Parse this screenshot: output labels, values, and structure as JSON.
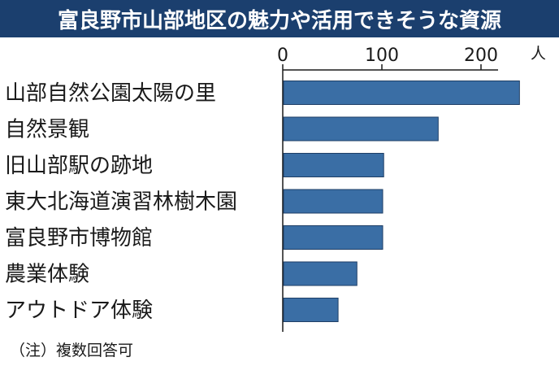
{
  "chart_data": {
    "type": "bar",
    "orientation": "horizontal",
    "title": "富良野市山部地区の魅力や活用できそうな資源",
    "unit": "人",
    "xlim": [
      0,
      250
    ],
    "ticks": [
      0,
      100,
      200
    ],
    "tick_labels": [
      "0",
      "100",
      "200"
    ],
    "categories": [
      "山部自然公園太陽の里",
      "自然景観",
      "旧山部駅の跡地",
      "東大北海道演習林樹木園",
      "富良野市博物館",
      "農業体験",
      "アウトドア体験"
    ],
    "values": [
      238,
      156,
      101,
      100,
      100,
      74,
      55
    ],
    "bar_color": "#3a6ea5",
    "grid": false,
    "note": "（注）複数回答可"
  },
  "colors": {
    "title_bg": "#1b3f6e",
    "title_fg": "#ffffff",
    "bar": "#3a6ea5",
    "bar_stroke": "#1f3f66",
    "axis": "#1a1a1a"
  }
}
